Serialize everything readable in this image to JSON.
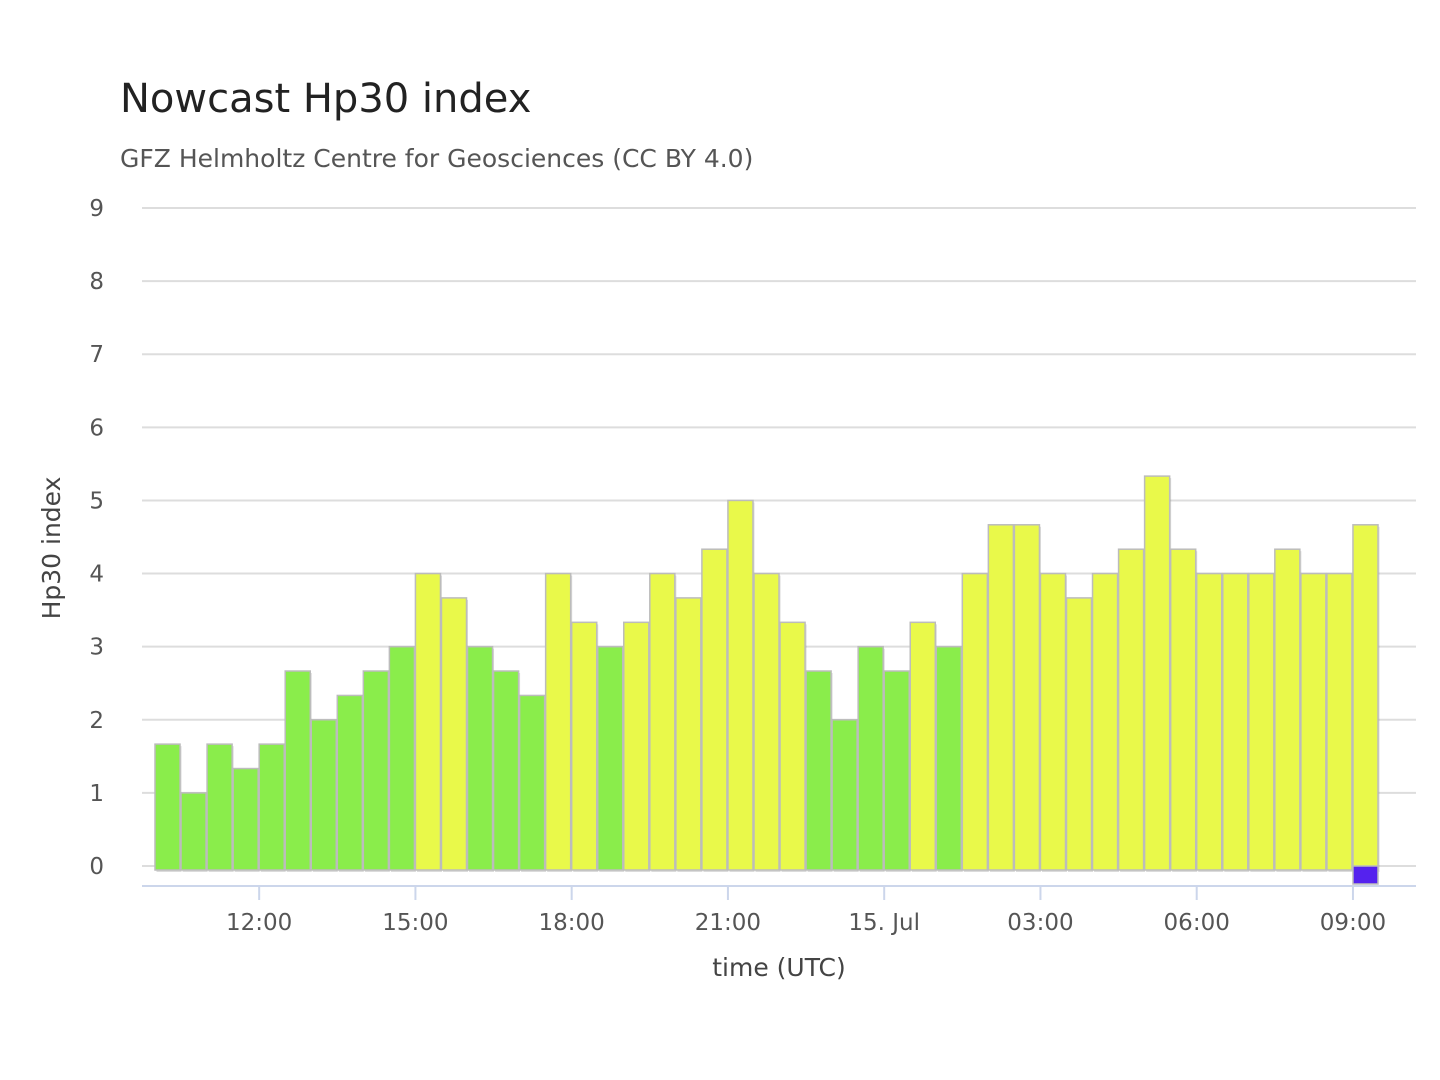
{
  "title": "Nowcast Hp30 index",
  "subtitle": "GFZ Helmholtz Centre for Geosciences (CC BY 4.0)",
  "chart_data": {
    "type": "bar",
    "title": "Nowcast Hp30 index",
    "subtitle": "GFZ Helmholtz Centre for Geosciences (CC BY 4.0)",
    "xlabel": "time (UTC)",
    "ylabel": "Hp30 index",
    "ylim": [
      0,
      9
    ],
    "yticks": [
      "0",
      "1",
      "2",
      "3",
      "4",
      "5",
      "6",
      "7",
      "8",
      "9"
    ],
    "xlim": [
      "2024-07-14 10:00",
      "2024-07-15 09:30"
    ],
    "xtick_labels": [
      "12:00",
      "15:00",
      "18:00",
      "21:00",
      "15. Jul",
      "03:00",
      "06:00",
      "09:00"
    ],
    "grid": true,
    "bar_width_minutes": 30,
    "times": [
      "2024-07-14 10:00",
      "2024-07-14 10:30",
      "2024-07-14 11:00",
      "2024-07-14 11:30",
      "2024-07-14 12:00",
      "2024-07-14 12:30",
      "2024-07-14 13:00",
      "2024-07-14 13:30",
      "2024-07-14 14:00",
      "2024-07-14 14:30",
      "2024-07-14 15:00",
      "2024-07-14 15:30",
      "2024-07-14 16:00",
      "2024-07-14 16:30",
      "2024-07-14 17:00",
      "2024-07-14 17:30",
      "2024-07-14 18:00",
      "2024-07-14 18:30",
      "2024-07-14 19:00",
      "2024-07-14 19:30",
      "2024-07-14 20:00",
      "2024-07-14 20:30",
      "2024-07-14 21:00",
      "2024-07-14 21:30",
      "2024-07-14 22:00",
      "2024-07-14 22:30",
      "2024-07-14 23:00",
      "2024-07-14 23:30",
      "2024-07-15 00:00",
      "2024-07-15 00:30",
      "2024-07-15 01:00",
      "2024-07-15 01:30",
      "2024-07-15 02:00",
      "2024-07-15 02:30",
      "2024-07-15 03:00",
      "2024-07-15 03:30",
      "2024-07-15 04:00",
      "2024-07-15 04:30",
      "2024-07-15 05:00",
      "2024-07-15 05:30",
      "2024-07-15 06:00",
      "2024-07-15 06:30",
      "2024-07-15 07:00",
      "2024-07-15 07:30",
      "2024-07-15 08:00",
      "2024-07-15 08:30",
      "2024-07-15 09:00"
    ],
    "values": [
      1.667,
      1.0,
      1.667,
      1.333,
      1.667,
      2.667,
      2.0,
      2.333,
      2.667,
      3.0,
      4.0,
      3.667,
      3.0,
      2.667,
      2.333,
      4.0,
      3.333,
      3.0,
      3.333,
      4.0,
      3.667,
      4.333,
      5.0,
      4.0,
      3.333,
      2.667,
      2.0,
      3.0,
      2.667,
      3.333,
      3.0,
      4.0,
      4.667,
      4.667,
      4.0,
      3.667,
      4.0,
      4.333,
      5.333,
      4.333,
      4.0,
      4.0,
      4.0,
      4.333,
      4.0,
      4.0,
      4.667
    ],
    "colors": [
      "#8aed4b",
      "#8aed4b",
      "#8aed4b",
      "#8aed4b",
      "#8aed4b",
      "#8aed4b",
      "#8aed4b",
      "#8aed4b",
      "#8aed4b",
      "#8aed4b",
      "#e9f94a",
      "#e9f94a",
      "#8aed4b",
      "#8aed4b",
      "#8aed4b",
      "#e9f94a",
      "#e9f94a",
      "#8aed4b",
      "#e9f94a",
      "#e9f94a",
      "#e9f94a",
      "#e9f94a",
      "#e9f94a",
      "#e9f94a",
      "#e9f94a",
      "#8aed4b",
      "#8aed4b",
      "#8aed4b",
      "#8aed4b",
      "#e9f94a",
      "#8aed4b",
      "#e9f94a",
      "#e9f94a",
      "#e9f94a",
      "#e9f94a",
      "#e9f94a",
      "#e9f94a",
      "#e9f94a",
      "#e9f94a",
      "#e9f94a",
      "#e9f94a",
      "#e9f94a",
      "#e9f94a",
      "#e9f94a",
      "#e9f94a",
      "#e9f94a",
      "#e9f94a"
    ],
    "placeholder_bar": {
      "time": "2024-07-15 09:00",
      "color": "#5522ee"
    },
    "color_legend": {
      "green": "#8aed4b",
      "yellow": "#e9f94a",
      "gridline": "#dddddd",
      "axis_line": "#ccd6eb"
    }
  }
}
